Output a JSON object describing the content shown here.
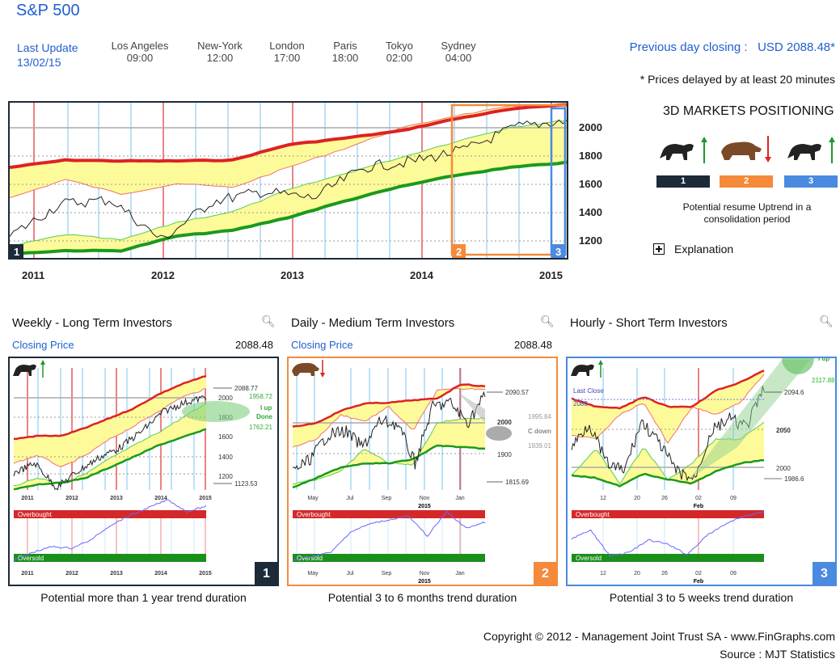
{
  "header": {
    "title": "S&P 500",
    "last_update_label": "Last Update",
    "last_update_date": "13/02/15",
    "cities": [
      {
        "name": "Los Angeles",
        "time": "09:00"
      },
      {
        "name": "New-York",
        "time": "12:00"
      },
      {
        "name": "London",
        "time": "17:00"
      },
      {
        "name": "Paris",
        "time": "18:00"
      },
      {
        "name": "Tokyo",
        "time": "02:00"
      },
      {
        "name": "Sydney",
        "time": "04:00"
      }
    ],
    "prev_close_label": "Previous day closing :",
    "prev_close_value": "USD 2088.48*",
    "delay_note": "* Prices delayed by at least 20 minutes"
  },
  "main_chart": {
    "y_ticks": [
      "2000",
      "1800",
      "1600",
      "1400",
      "1200"
    ],
    "x_ticks": [
      "2011",
      "2012",
      "2013",
      "2014",
      "2015"
    ],
    "badges": [
      "1",
      "2",
      "3"
    ]
  },
  "positioning": {
    "title": "3D MARKETS POSITIONING",
    "items": [
      {
        "label": "1",
        "icon": "bull-icon",
        "arrow": "up",
        "color": "#1c2a3a"
      },
      {
        "label": "2",
        "icon": "bear-icon",
        "arrow": "down",
        "color": "#f58a3a"
      },
      {
        "label": "3",
        "icon": "bull-icon",
        "arrow": "up",
        "color": "#4a8ae0"
      }
    ],
    "message": "Potential resume Uptrend in a consolidation period",
    "explanation": "Explanation"
  },
  "panels": [
    {
      "title": "Weekly - Long Term Investors",
      "closing_label": "Closing Price",
      "closing_value": "2088.48",
      "badge": "1",
      "color": "#1c2a3a",
      "caption": "Potential more than 1 year trend duration",
      "x_ticks": [
        "2011",
        "2012",
        "2013",
        "2014",
        "2015"
      ],
      "y_ticks": [
        "2000",
        "1800",
        "1600",
        "1400",
        "1200"
      ],
      "annotations": {
        "high": "2088.77",
        "low": "1123.53",
        "target_high": "1958.72",
        "target_low": "1762.21",
        "signal1": "I up",
        "signal2": "Done"
      },
      "overbought": "Overbought",
      "oversold": "Oversold"
    },
    {
      "title": "Daily - Medium Term Investors",
      "closing_label": "Closing Price",
      "closing_value": "2088.48",
      "badge": "2",
      "color": "#f58a3a",
      "caption": "Potential 3 to 6 months trend duration",
      "x_ticks": [
        "May",
        "Jul",
        "Sep",
        "Nov",
        "Jan"
      ],
      "x_sub": "2015",
      "y_ticks": [
        "2000",
        "1900"
      ],
      "annotations": {
        "high": "2090.57",
        "low": "1815.69",
        "target_high": "1995.84",
        "target_low": "1939.01",
        "signal1": "C down"
      },
      "overbought": "Overbought",
      "oversold": "Oversold"
    },
    {
      "title": "Hourly - Short Term Investors",
      "badge": "3",
      "color": "#4a8ae0",
      "caption": "Potential 3 to 5 weeks trend duration",
      "x_ticks": [
        "12",
        "20",
        "26",
        "02",
        "09"
      ],
      "x_sub": "Feb",
      "y_ticks": [
        "2050",
        "2000"
      ],
      "annotations": {
        "last_close_label": "Last Close",
        "last_close_value": "2088",
        "high": "2094.6",
        "low": "1986.6",
        "target_high": "2117.88",
        "signal1": "I up"
      },
      "overbought": "Overbought",
      "oversold": "Oversold"
    }
  ],
  "footer": {
    "copyright": "Copyright © 2012 - Management Joint Trust SA - www.FinGraphs.com",
    "source": "Source : MJT Statistics"
  }
}
